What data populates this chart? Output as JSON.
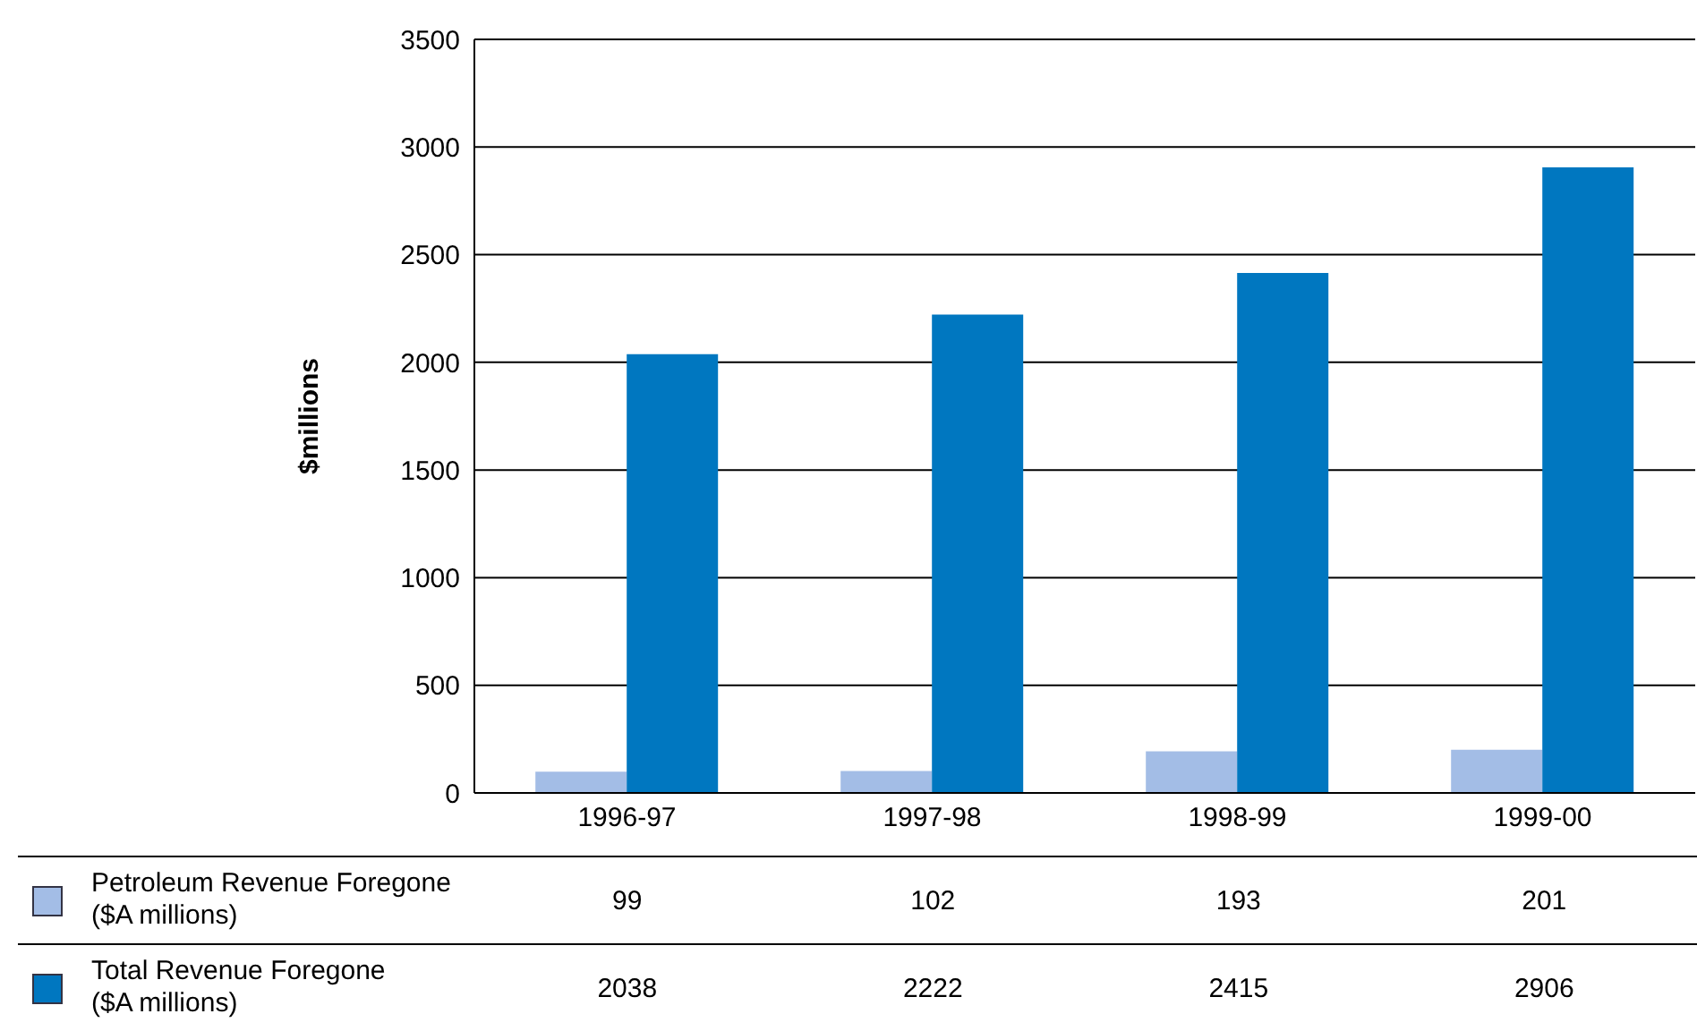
{
  "chart_data": {
    "type": "bar",
    "ylabel": "$millions",
    "categories": [
      "1996-97",
      "1997-98",
      "1998-99",
      "1999-00"
    ],
    "series": [
      {
        "name": "Petroleum Revenue Foregone\n($A millions)",
        "color": "#a3bde6",
        "values": [
          99,
          102,
          193,
          201
        ]
      },
      {
        "name": "Total Revenue Foregone\n($A millions)",
        "color": "#0077c0",
        "values": [
          2038,
          2222,
          2415,
          2906
        ]
      }
    ],
    "ylim": [
      0,
      3500
    ],
    "yticks": [
      0,
      500,
      1000,
      1500,
      2000,
      2500,
      3000,
      3500
    ],
    "grid": "y",
    "legend": "bottom",
    "data_labels": true
  }
}
